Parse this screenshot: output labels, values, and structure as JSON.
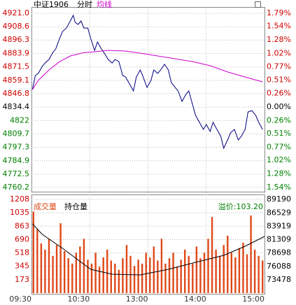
{
  "chart_data": [
    {
      "type": "line",
      "title": "中证1906",
      "xlim": [
        0,
        240
      ],
      "xticks": [
        {
          "value": 0,
          "label": "09:30"
        },
        {
          "value": 60,
          "label": "10:30"
        },
        {
          "value": 120,
          "label": "13:00"
        },
        {
          "value": 180,
          "label": "14:00"
        },
        {
          "value": 240,
          "label": "15:00"
        }
      ],
      "ylim": [
        4760.2,
        4921.0
      ],
      "yticks": [
        {
          "value": 4921.0,
          "label": "4921.0"
        },
        4908.6,
        4896.3,
        4883.9,
        4871.5,
        4859.1,
        4846.8,
        4834.4,
        4822.0,
        4809.7,
        4797.3,
        4784.9,
        4772.5,
        4760.2
      ],
      "y2lim": [
        -1.54,
        1.79
      ],
      "y2ticks": [
        {
          "value": 1.79,
          "label": "1.79%"
        },
        {
          "value": 1.54,
          "label": "1.54%"
        },
        {
          "value": 1.28,
          "label": "1.28%"
        },
        {
          "value": 1.02,
          "label": "1.02%"
        },
        {
          "value": 0.77,
          "label": "0.77%"
        },
        {
          "value": 0.51,
          "label": "0.51%"
        },
        {
          "value": 0.26,
          "label": "0.26%"
        },
        {
          "value": 0,
          "label": "0.00%"
        },
        {
          "value": -0.26,
          "label": "0.26%"
        },
        {
          "value": -0.51,
          "label": "0.51%"
        },
        {
          "value": -0.77,
          "label": "0.77%"
        },
        {
          "value": -1.02,
          "label": "1.02%"
        },
        {
          "value": -1.28,
          "label": "1.28%"
        },
        {
          "value": -1.54,
          "label": "1.54%"
        }
      ],
      "grid": true,
      "series": [
        {
          "name": "分时",
          "color": "#000080",
          "x": [
            1,
            4,
            7,
            11,
            14,
            18,
            22,
            25,
            29,
            32,
            36,
            40,
            43,
            45,
            48,
            51,
            54,
            58,
            61,
            65,
            68,
            72,
            76,
            79,
            83,
            86,
            90,
            94,
            97,
            101,
            105,
            108,
            112,
            115,
            119,
            123,
            126,
            130,
            133,
            137,
            141,
            144,
            148,
            151,
            155,
            159,
            162,
            166,
            169,
            173,
            177,
            180,
            184,
            187,
            191,
            195,
            198,
            202,
            205,
            209,
            213,
            216,
            220,
            223,
            227,
            231,
            234,
            238
          ],
          "values": [
            4850.6,
            4863.5,
            4865.5,
            4871.9,
            4875.1,
            4878.4,
            4884.8,
            4888.1,
            4897.8,
            4904.2,
            4907.4,
            4913.9,
            4919.1,
            4912.6,
            4910.7,
            4913.9,
            4907.4,
            4907.4,
            4897.8,
            4886.8,
            4894.5,
            4888.1,
            4882.9,
            4878.4,
            4875.1,
            4878.4,
            4876.4,
            4863.5,
            4862.2,
            4855.8,
            4849.3,
            4862.2,
            4868.7,
            4862.2,
            4852.5,
            4859.0,
            4868.7,
            4865.5,
            4868.7,
            4873.9,
            4868.7,
            4857.1,
            4852.5,
            4849.3,
            4839.6,
            4846.1,
            4849.3,
            4836.4,
            4826.7,
            4820.3,
            4813.8,
            4818.3,
            4811.9,
            4820.3,
            4813.8,
            4807.3,
            4796.4,
            4804.1,
            4810.6,
            4813.8,
            4804.1,
            4807.3,
            4813.8,
            4829.9,
            4831.2,
            4826.7,
            4820.3,
            4813.8
          ]
        },
        {
          "name": "均线",
          "color": "#cc00cc",
          "x": [
            1,
            7,
            18,
            29,
            40,
            54,
            65,
            79,
            97,
            112,
            130,
            148,
            166,
            184,
            202,
            220,
            238
          ],
          "values": [
            4850.6,
            4859.0,
            4868.7,
            4876.4,
            4881.6,
            4884.8,
            4885.5,
            4886.8,
            4886.1,
            4884.2,
            4881.6,
            4879.0,
            4876.4,
            4872.6,
            4866.8,
            4862.2,
            4857.7
          ]
        }
      ]
    },
    {
      "type": "bar",
      "xlim": [
        0,
        240
      ],
      "ylim": [
        0,
        1208
      ],
      "yticks": [
        1208,
        1035,
        863,
        690,
        518,
        345,
        173
      ],
      "y2lim": [
        70868,
        89190
      ],
      "y2ticks": [
        89190,
        86529,
        83919,
        81309,
        78698,
        76088,
        73478
      ],
      "annotation": "溢价:103.20",
      "series": [
        {
          "name": "成交量",
          "color": "#e04818",
          "x": [
            2,
            6,
            10,
            14,
            18,
            22,
            26,
            30,
            34,
            38,
            42,
            46,
            50,
            54,
            58,
            62,
            66,
            70,
            74,
            78,
            82,
            86,
            90,
            94,
            98,
            102,
            106,
            110,
            114,
            118,
            122,
            126,
            130,
            134,
            138,
            142,
            146,
            150,
            154,
            158,
            162,
            166,
            170,
            174,
            178,
            182,
            186,
            190,
            194,
            198,
            202,
            206,
            210,
            214,
            218,
            222,
            226,
            230,
            234,
            238
          ],
          "values": [
            1050,
            820,
            640,
            560,
            700,
            480,
            620,
            900,
            540,
            450,
            380,
            520,
            600,
            700,
            430,
            380,
            520,
            340,
            460,
            560,
            420,
            380,
            300,
            450,
            620,
            480,
            350,
            430,
            380,
            520,
            460,
            600,
            420,
            700,
            380,
            450,
            520,
            340,
            430,
            560,
            480,
            380,
            600,
            450,
            520,
            700,
            980,
            560,
            480,
            620,
            740,
            520,
            460,
            580,
            650,
            500,
            1000,
            560,
            480,
            420
          ]
        },
        {
          "name": "持仓量",
          "color": "#000000",
          "type": "line",
          "axis": "y2",
          "x": [
            1,
            11,
            32,
            61,
            83,
            112,
            141,
            169,
            198,
            220,
            240
          ],
          "values": [
            84405,
            82355,
            79621,
            75520,
            74563,
            74427,
            75520,
            76887,
            78254,
            80031,
            81945
          ]
        }
      ]
    }
  ]
}
